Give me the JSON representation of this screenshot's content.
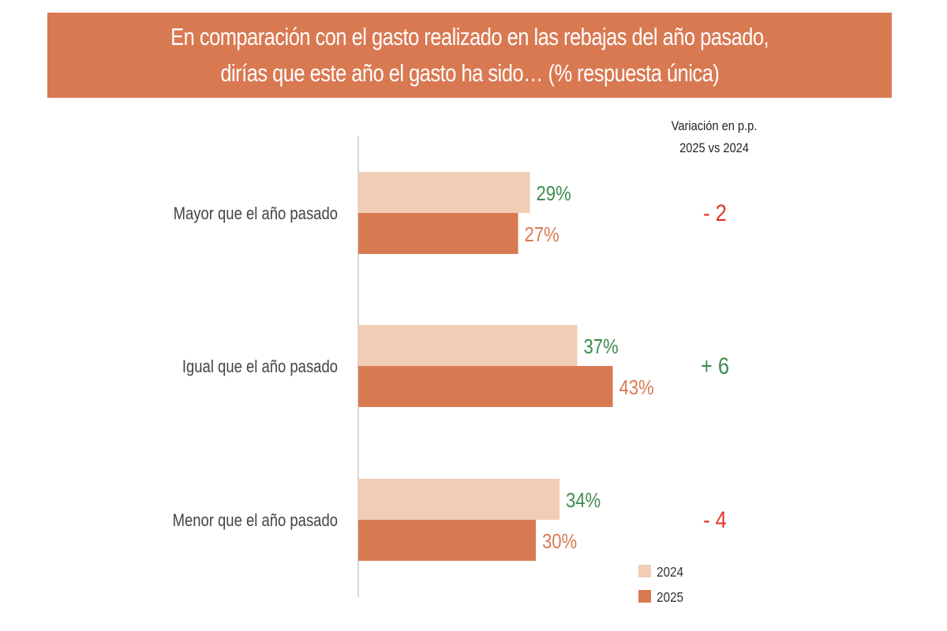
{
  "title": {
    "line1": "En comparación con el gasto realizado en las rebajas del año pasado,",
    "line2": "dirías que este año el gasto ha sido… (% respuesta única)"
  },
  "variation_header": {
    "line1": "Variación en p.p.",
    "line2": "2025 vs 2024"
  },
  "colors": {
    "title_band": "#D97952",
    "bar_2024": "#F0CDB4",
    "bar_2025": "#D97952",
    "label_2024": "#3E8B4E",
    "label_2025": "#D97952",
    "variation_positive": "#3E8B4E",
    "variation_negative": "#E0342A",
    "category_text": "#444444",
    "axis": "#c8c8c8"
  },
  "chart_data": {
    "type": "bar",
    "orientation": "horizontal",
    "categories": [
      "Mayor que el año pasado",
      "Igual que el año pasado",
      "Menor que el año pasado"
    ],
    "series": [
      {
        "name": "2024",
        "values": [
          29,
          37,
          34
        ],
        "labels": [
          "29%",
          "37%",
          "34%"
        ]
      },
      {
        "name": "2025",
        "values": [
          27,
          43,
          30
        ],
        "labels": [
          "27%",
          "43%",
          "30%"
        ]
      }
    ],
    "variation": [
      "- 2",
      "+ 6",
      "- 4"
    ],
    "variation_sign": [
      "negative",
      "positive",
      "negative"
    ],
    "legend": [
      "2024",
      "2025"
    ],
    "legend_position": "bottom-right",
    "xlim": [
      0,
      100
    ],
    "grid": false
  }
}
